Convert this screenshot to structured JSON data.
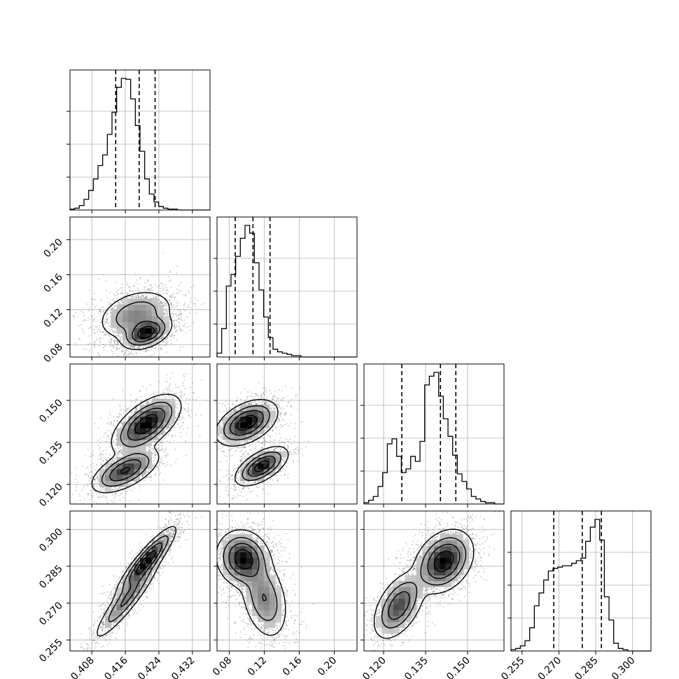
{
  "chart_data": {
    "type": "corner",
    "parameters": [
      {
        "index": 0,
        "range": [
          0.4028,
          0.4362
        ],
        "ticks": [
          "0.408",
          "0.416",
          "0.424",
          "0.432"
        ],
        "tick_values": [
          0.408,
          0.416,
          0.424,
          0.432
        ],
        "quantiles": [
          0.4137,
          0.4193,
          0.4231
        ]
      },
      {
        "index": 1,
        "range": [
          0.066,
          0.226
        ],
        "ticks": [
          "0.08",
          "0.12",
          "0.16",
          "0.20"
        ],
        "tick_values": [
          0.08,
          0.12,
          0.16,
          0.2
        ],
        "quantiles": [
          0.0868,
          0.1071,
          0.1266
        ]
      },
      {
        "index": 2,
        "range": [
          0.113,
          0.163
        ],
        "ticks": [
          "0.120",
          "0.135",
          "0.150"
        ],
        "tick_values": [
          0.12,
          0.135,
          0.15
        ],
        "quantiles": [
          0.1265,
          0.1403,
          0.1458
        ]
      },
      {
        "index": 3,
        "range": [
          0.2505,
          0.3075
        ],
        "ticks": [
          "0.255",
          "0.270",
          "0.285",
          "0.300"
        ],
        "tick_values": [
          0.255,
          0.27,
          0.285,
          0.3
        ],
        "quantiles": [
          0.2679,
          0.2795,
          0.2873
        ]
      }
    ],
    "histograms": [
      {
        "param": 0,
        "counts": [
          1,
          2,
          5,
          12,
          22,
          35,
          50,
          62,
          85,
          110,
          138,
          148,
          147,
          125,
          95,
          66,
          35,
          18,
          9,
          4,
          2,
          1,
          1,
          0,
          0,
          0,
          0,
          0,
          0,
          0
        ]
      },
      {
        "param": 1,
        "counts": [
          3,
          22,
          55,
          64,
          78,
          92,
          102,
          96,
          73,
          52,
          31,
          15,
          6,
          4,
          3,
          2,
          1,
          1,
          0,
          0,
          0,
          0,
          0,
          0,
          0,
          0,
          0,
          0,
          0,
          0
        ]
      },
      {
        "param": 2,
        "counts": [
          1,
          3,
          6,
          14,
          25,
          48,
          52,
          38,
          25,
          28,
          38,
          34,
          50,
          95,
          102,
          105,
          86,
          68,
          54,
          39,
          24,
          18,
          12,
          6,
          4,
          2,
          1,
          1,
          0,
          0
        ]
      },
      {
        "param": 3,
        "counts": [
          1,
          2,
          4,
          8,
          18,
          35,
          45,
          55,
          62,
          64,
          65,
          66,
          66,
          68,
          70,
          72,
          85,
          96,
          102,
          86,
          42,
          24,
          6,
          2,
          1,
          0,
          0,
          0,
          0,
          0
        ]
      }
    ],
    "hist2d": [
      {
        "x": 0,
        "y": 1,
        "components": [
          {
            "weight": 0.55,
            "mx": 0.4185,
            "my": 0.114,
            "sx": 0.004,
            "sy": 0.0128,
            "rho": 0.3
          },
          {
            "weight": 0.45,
            "mx": 0.421,
            "my": 0.0935,
            "sx": 0.0025,
            "sy": 0.008,
            "rho": 0.4
          }
        ]
      },
      {
        "x": 0,
        "y": 2,
        "components": [
          {
            "weight": 0.38,
            "mx": 0.416,
            "my": 0.125,
            "sx": 0.0035,
            "sy": 0.0035,
            "rho": 0.6
          },
          {
            "weight": 0.62,
            "mx": 0.421,
            "my": 0.1415,
            "sx": 0.0035,
            "sy": 0.0045,
            "rho": 0.6
          }
        ]
      },
      {
        "x": 0,
        "y": 3,
        "components": [
          {
            "weight": 0.4,
            "mx": 0.4165,
            "my": 0.272,
            "sx": 0.0035,
            "sy": 0.0075,
            "rho": 0.92
          },
          {
            "weight": 0.6,
            "mx": 0.421,
            "my": 0.287,
            "sx": 0.003,
            "sy": 0.006,
            "rho": 0.9
          }
        ]
      },
      {
        "x": 1,
        "y": 2,
        "components": [
          {
            "weight": 0.62,
            "mx": 0.1,
            "my": 0.142,
            "sx": 0.015,
            "sy": 0.0035,
            "rho": 0.45
          },
          {
            "weight": 0.38,
            "mx": 0.117,
            "my": 0.1265,
            "sx": 0.013,
            "sy": 0.003,
            "rho": 0.6
          }
        ]
      },
      {
        "x": 1,
        "y": 3,
        "components": [
          {
            "weight": 0.62,
            "mx": 0.096,
            "my": 0.288,
            "sx": 0.013,
            "sy": 0.005,
            "rho": -0.1
          },
          {
            "weight": 0.38,
            "mx": 0.12,
            "my": 0.272,
            "sx": 0.012,
            "sy": 0.0075,
            "rho": -0.3
          }
        ]
      },
      {
        "x": 2,
        "y": 3,
        "components": [
          {
            "weight": 0.38,
            "mx": 0.1255,
            "my": 0.269,
            "sx": 0.004,
            "sy": 0.006,
            "rho": 0.5
          },
          {
            "weight": 0.62,
            "mx": 0.1415,
            "my": 0.287,
            "sx": 0.0045,
            "sy": 0.0055,
            "rho": 0.3
          }
        ]
      }
    ],
    "contour_levels": [
      "0.5-sigma",
      "1-sigma",
      "1.5-sigma",
      "2-sigma"
    ],
    "grid": true,
    "title": "",
    "xlabel": "",
    "ylabel": ""
  },
  "colors": {
    "ink": "#000000",
    "grid": "#b0b0b0",
    "background": "#ffffff"
  }
}
